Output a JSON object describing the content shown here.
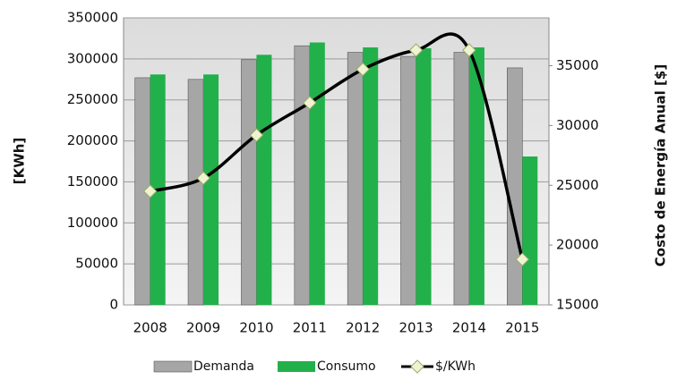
{
  "chart_data": {
    "type": "bar",
    "categories": [
      "2008",
      "2009",
      "2010",
      "2011",
      "2012",
      "2013",
      "2014",
      "2015"
    ],
    "series": [
      {
        "name": "Demanda",
        "color": "#a6a6a6",
        "values": [
          277000,
          275000,
          299000,
          316000,
          308000,
          303000,
          308000,
          289000
        ]
      },
      {
        "name": "Consumo",
        "color": "#22b04b",
        "values": [
          281000,
          281000,
          305000,
          320000,
          314000,
          313000,
          314000,
          181000
        ]
      },
      {
        "name": "$/KWh",
        "color": "#000000",
        "type": "line",
        "axis": "y2",
        "values": [
          24500,
          25600,
          29200,
          31900,
          34700,
          36300,
          36300,
          18800
        ]
      }
    ],
    "y_label": "[KWh]",
    "y2_label": "Costo de Energía Anual [$]",
    "ylim": [
      0,
      350000
    ],
    "yticks": [
      0,
      50000,
      100000,
      150000,
      200000,
      250000,
      300000,
      350000
    ],
    "y2lim": [
      15000,
      39000
    ],
    "y2ticks": [
      15000,
      20000,
      25000,
      30000,
      35000
    ],
    "grid": true,
    "legend": "bottom"
  }
}
